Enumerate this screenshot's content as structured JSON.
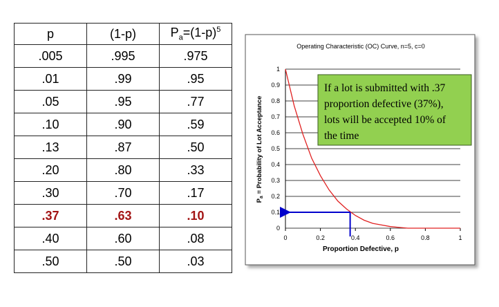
{
  "table": {
    "header": [
      "p",
      "(1-p)",
      [
        "P",
        "a",
        "=(1-p)",
        "5"
      ]
    ],
    "rows": [
      [
        ".005",
        ".995",
        ".975"
      ],
      [
        ".01",
        ".99",
        ".95"
      ],
      [
        ".05",
        ".95",
        ".77"
      ],
      [
        ".10",
        ".90",
        ".59"
      ],
      [
        ".13",
        ".87",
        ".50"
      ],
      [
        ".20",
        ".80",
        ".33"
      ],
      [
        ".30",
        ".70",
        ".17"
      ],
      [
        ".37",
        ".63",
        ".10"
      ],
      [
        ".40",
        ".60",
        ".08"
      ],
      [
        ".50",
        ".50",
        ".03"
      ]
    ],
    "highlight_row": 7,
    "highlight_color": "#a31515"
  },
  "chart_data": {
    "type": "line",
    "title": "Operating Characteristic (OC) Curve, n=5, c=0",
    "xlabel": "Proportion Defective, p",
    "ylabel": [
      "P",
      "a",
      " = Probability of Lot Acceptance"
    ],
    "x": [
      0,
      0.05,
      0.1,
      0.15,
      0.2,
      0.25,
      0.3,
      0.35,
      0.4,
      0.45,
      0.5,
      0.55,
      0.6,
      0.65,
      0.7,
      0.8,
      0.9,
      1
    ],
    "values": [
      1,
      0.77,
      0.59,
      0.44,
      0.33,
      0.24,
      0.17,
      0.12,
      0.08,
      0.05,
      0.03,
      0.02,
      0.01,
      0.005,
      0,
      0,
      0,
      0
    ],
    "color": "#e02020",
    "xlim": [
      0,
      1
    ],
    "xticks": [
      0,
      0.2,
      0.4,
      0.6,
      0.8,
      1
    ],
    "ylim": [
      0,
      1
    ],
    "yticks": [
      0,
      0.1,
      0.2,
      0.3,
      0.4,
      0.5,
      0.6,
      0.7,
      0.8,
      0.9,
      1
    ],
    "grid": true,
    "marker": {
      "x": 0.37,
      "y": 0.1,
      "color": "#0000cc"
    },
    "annotation": [
      "If a lot is submitted with .37",
      "proportion defective (37%),",
      "lots will be accepted 10% of",
      "the time"
    ]
  }
}
